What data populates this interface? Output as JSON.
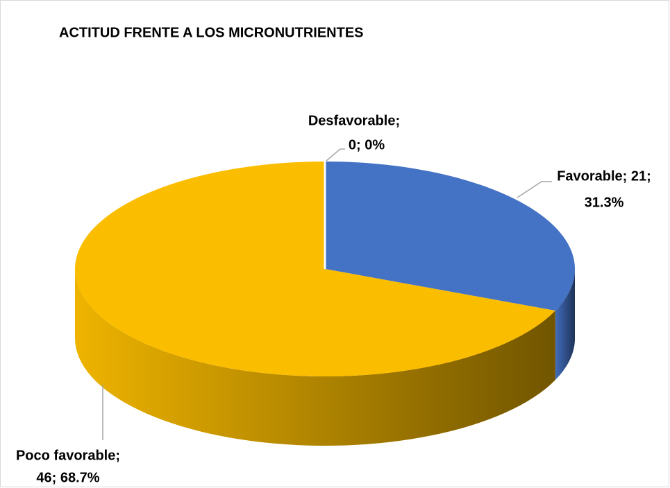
{
  "chart_data": {
    "type": "pie3d",
    "title": "ACTITUD FRENTE A LOS MICRONUTRIENTES",
    "categories": [
      "Favorable",
      "Poco favorable",
      "Desfavorable"
    ],
    "values": [
      21,
      46,
      0
    ],
    "value_labels": [
      [
        "Favorable; 21;",
        "31.3%"
      ],
      [
        "Poco favorable;",
        "46; 68.7%"
      ],
      [
        "Desfavorable;",
        "0; 0%"
      ]
    ],
    "colors": [
      "#4472c4",
      "#fbbd00",
      "#a5a5a5"
    ]
  }
}
